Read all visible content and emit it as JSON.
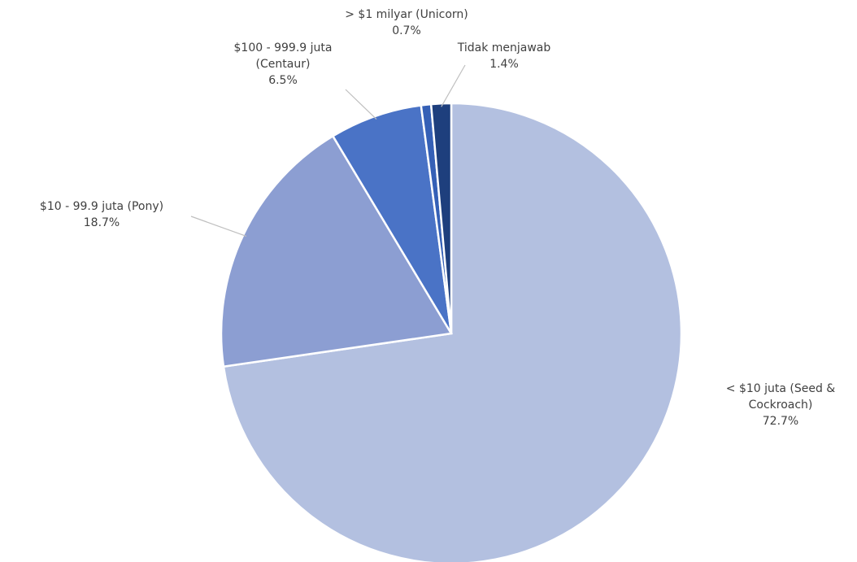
{
  "chart_data": {
    "type": "pie",
    "title": "",
    "start_angle_deg": 0,
    "direction": "clockwise",
    "legend": "none",
    "slices": [
      {
        "name": "< $10 juta (Seed & Cockroach)",
        "label_lines": [
          "< $10 juta (Seed &",
          "Cockroach)"
        ],
        "value": 72.7,
        "value_label": "72.7%",
        "color": "#b3c0e0"
      },
      {
        "name": "$10 - 99.9 juta (Pony)",
        "label_lines": [
          "$10 - 99.9 juta (Pony)"
        ],
        "value": 18.7,
        "value_label": "18.7%",
        "color": "#8c9ed2"
      },
      {
        "name": "$100 - 999.9 juta (Centaur)",
        "label_lines": [
          "$100 - 999.9 juta",
          "(Centaur)"
        ],
        "value": 6.5,
        "value_label": "6.5%",
        "color": "#4a73c6"
      },
      {
        "name": "> $1 milyar (Unicorn)",
        "label_lines": [
          "> $1 milyar (Unicorn)"
        ],
        "value": 0.7,
        "value_label": "0.7%",
        "color": "#3560b6"
      },
      {
        "name": "Tidak menjawab",
        "label_lines": [
          "Tidak menjawab"
        ],
        "value": 1.4,
        "value_label": "1.4%",
        "color": "#1e3f7d"
      }
    ]
  }
}
